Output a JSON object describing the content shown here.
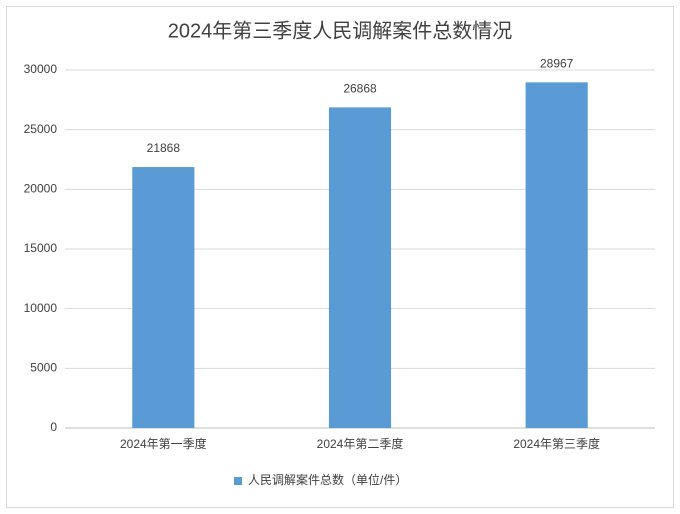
{
  "chart_data": {
    "type": "bar",
    "title": "2024年第三季度人民调解案件总数情况",
    "categories": [
      "2024年第一季度",
      "2024年第二季度",
      "2024年第三季度"
    ],
    "series": [
      {
        "name": "人民调解案件总数（单位/件）",
        "color": "#5b9bd5",
        "values": [
          21868,
          26868,
          28967
        ]
      }
    ],
    "ylim": [
      0,
      30000
    ],
    "yticks": [
      0,
      5000,
      10000,
      15000,
      20000,
      25000,
      30000
    ],
    "grid": true,
    "legend": "bottom"
  }
}
